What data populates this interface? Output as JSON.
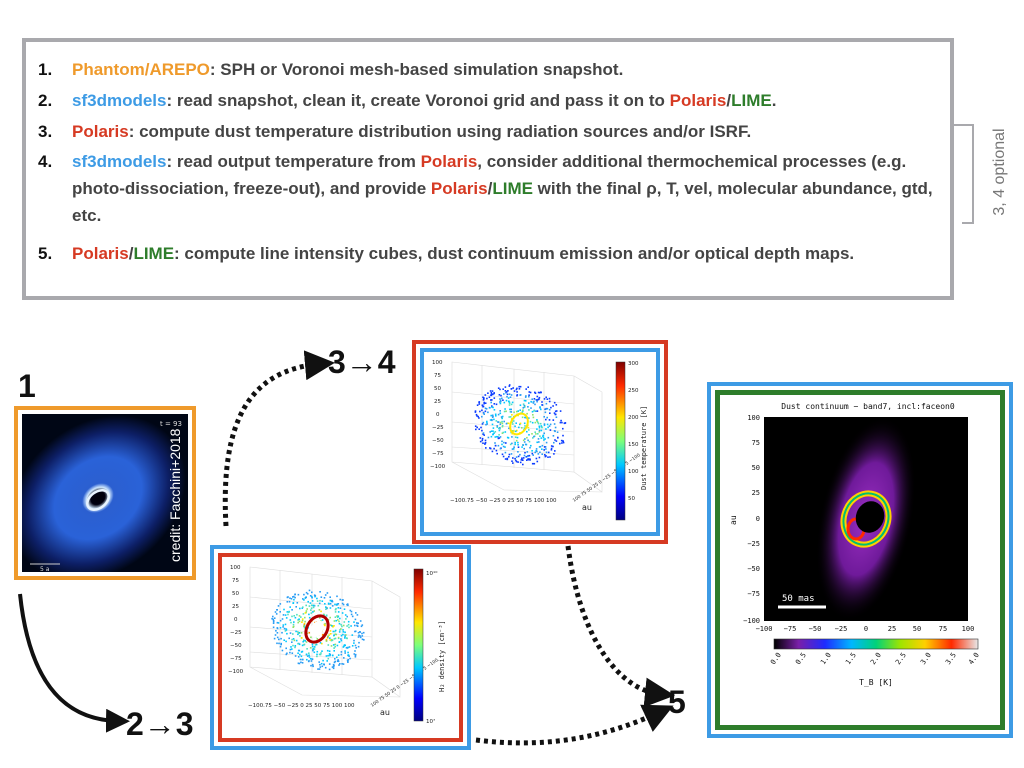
{
  "steps": [
    {
      "num": "1.",
      "hl1": "Phantom/AREPO",
      "rest1": ": SPH or Voronoi mesh-based simulation snapshot."
    },
    {
      "num": "2.",
      "hl1": "sf3dmodels",
      "mid": ": read snapshot, clean it, create Voronoi grid and pass it on to ",
      "hl2a": "Polaris",
      "slash": "/",
      "hl2b": "LIME",
      "end": "."
    },
    {
      "num": "3.",
      "hl1": "Polaris",
      "rest1": ": compute dust temperature distribution using radiation sources and/or ISRF."
    },
    {
      "num": "4.",
      "hl1": "sf3dmodels",
      "mid": ": read output temperature from ",
      "hl2": "Polaris",
      "mid2": ", consider additional thermochemical processes (e.g. photo-dissociation, freeze-out), and provide ",
      "hl3a": "Polaris",
      "slash": "/",
      "hl3b": "LIME",
      "end": " with the final ρ, T, vel, molecular abundance, gtd, etc."
    },
    {
      "num": "5.",
      "hl1a": "Polaris",
      "slash": "/",
      "hl1b": "LIME",
      "rest1": ": compute line intensity cubes, dust continuum emission and/or optical depth maps."
    }
  ],
  "optional_label": "3, 4 optional",
  "stages": {
    "s1": "1",
    "s23": "2→3",
    "s34": "3→4",
    "s5": "5"
  },
  "panel1": {
    "time": "t = 93",
    "credit": "credit: Facchini+2018",
    "scale": "5 a"
  },
  "panel_density": {
    "cbar_label": "H₂ density [cm⁻³]",
    "cbar_ticks": [
      "10¹⁰",
      "10⁷"
    ],
    "z_ticks": [
      "100",
      "75",
      "50",
      "25",
      "0",
      "−25",
      "−50",
      "−75",
      "−100"
    ],
    "x_ticks": "−100.75 −50 −25  0  25  50  75 100 100",
    "y_ticks": "100 75 50 25 0 −25 −50 −75 −100",
    "axis_label": "au"
  },
  "panel_temp": {
    "cbar_label": "Dust temperature [K]",
    "cbar_ticks": [
      "300",
      "250",
      "200",
      "150",
      "100",
      "50"
    ],
    "z_ticks": [
      "100",
      "75",
      "50",
      "25",
      "0",
      "−25",
      "−50",
      "−75",
      "−100"
    ],
    "x_ticks": "−100.75 −50 −25  0  25  50  75 100 100",
    "y_ticks": "100 75 50 25 0 −25 −50 −75 −100",
    "axis_label": "au"
  },
  "panel_dust": {
    "title": "Dust continuum − band7, incl:faceon0",
    "ylabel": "au",
    "y_ticks": [
      "100",
      "75",
      "50",
      "25",
      "0",
      "−25",
      "−50",
      "−75",
      "−100"
    ],
    "x_ticks": [
      "−100",
      "−75",
      "−50",
      "−25",
      "0",
      "25",
      "50",
      "75",
      "100"
    ],
    "scalebar": "50 mas",
    "cbar_ticks": [
      "0.0",
      "0.5",
      "1.0",
      "1.5",
      "2.0",
      "2.5",
      "3.0",
      "3.5",
      "4.0"
    ],
    "cbar_label": "T_B [K]"
  },
  "colors": {
    "orange": "#ef9a2b",
    "blue": "#3d9be5",
    "red": "#d63a23",
    "green": "#2e7d2b",
    "gray": "#a9a9ad"
  }
}
